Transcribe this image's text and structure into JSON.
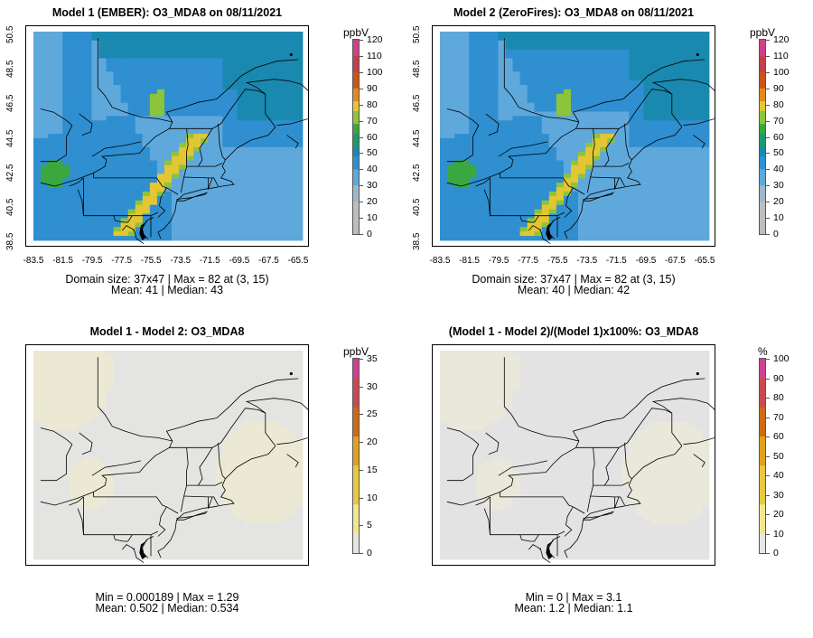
{
  "panels": [
    {
      "title": "Model 1 (EMBER): O3_MDA8 on 08/11/2021",
      "unit": "ppbV",
      "cbar_ticks": [
        "0",
        "10",
        "20",
        "30",
        "40",
        "50",
        "60",
        "70",
        "80",
        "90",
        "100",
        "110",
        "120"
      ],
      "cbar_max": 120,
      "palette": "ozone",
      "stats_line1": "Domain size: 37x47 | Max = 82 at (3, 15)",
      "stats_line2": "Mean: 41 |  Median: 43",
      "show_axes": true
    },
    {
      "title": "Model 2 (ZeroFires): O3_MDA8 on 08/11/2021",
      "unit": "ppbV",
      "cbar_ticks": [
        "0",
        "10",
        "20",
        "30",
        "40",
        "50",
        "60",
        "70",
        "80",
        "90",
        "100",
        "110",
        "120"
      ],
      "cbar_max": 120,
      "palette": "ozone",
      "stats_line1": "Domain size: 37x47 | Max = 82 at (3, 15)",
      "stats_line2": "Mean: 40 |  Median: 42",
      "show_axes": true
    },
    {
      "title": "Model 1 - Model 2: O3_MDA8",
      "unit": "ppbV",
      "cbar_ticks": [
        "0",
        "5",
        "10",
        "15",
        "20",
        "25",
        "30",
        "35"
      ],
      "cbar_max": 35,
      "palette": "diff",
      "stats_line1": "Min = 0.000189 | Max = 1.29",
      "stats_line2": "Mean: 0.502 |  Median: 0.534",
      "show_axes": false
    },
    {
      "title": "(Model 1 - Model 2)/(Model 1)x100%: O3_MDA8",
      "unit": "%",
      "cbar_ticks": [
        "0",
        "10",
        "20",
        "30",
        "40",
        "50",
        "60",
        "70",
        "80",
        "90",
        "100"
      ],
      "cbar_max": 100,
      "palette": "diff",
      "stats_line1": "Min = 0 | Max = 3.1",
      "stats_line2": "Mean: 1.2 |  Median: 1.1",
      "show_axes": false
    }
  ],
  "axes": {
    "lon_ticks": [
      "-83.5",
      "-81.5",
      "-79.5",
      "-77.5",
      "-75.5",
      "-73.5",
      "-71.5",
      "-69.5",
      "-67.5",
      "-65.5"
    ],
    "lat_ticks": [
      "38.5",
      "40.5",
      "42.5",
      "44.5",
      "46.5",
      "48.5",
      "50.5"
    ]
  }
}
